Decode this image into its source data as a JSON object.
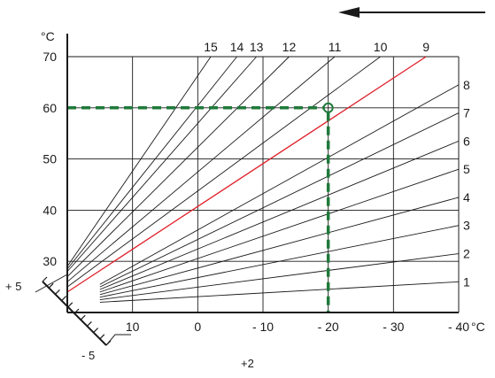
{
  "chart_data": {
    "type": "line",
    "xlabel": "°C",
    "ylabel": "°C",
    "x_ticks": [
      "10",
      "0",
      "- 10",
      "- 20",
      "- 30",
      "- 40"
    ],
    "y_ticks": [
      "30",
      "40",
      "50",
      "60",
      "70"
    ],
    "xlim": [
      20,
      -40
    ],
    "ylim": [
      20,
      70
    ],
    "grid": true,
    "direction_arrow": "right-to-left",
    "offset_scale": {
      "top_label": "+ 5",
      "bottom_label": "- 5",
      "center_label": "+2"
    },
    "highlighted_curve": "9",
    "highlight_color": "#e0202a",
    "guide_color": "#1f7a3a",
    "marked_point": {
      "x": -20,
      "y": 60
    },
    "series": [
      {
        "name": "1",
        "start": [
          15,
          22.0
        ],
        "end": [
          -40,
          26.0
        ]
      },
      {
        "name": "2",
        "start": [
          15,
          22.5
        ],
        "end": [
          -40,
          31.5
        ]
      },
      {
        "name": "3",
        "start": [
          15,
          23.0
        ],
        "end": [
          -40,
          37.0
        ]
      },
      {
        "name": "4",
        "start": [
          15,
          23.5
        ],
        "end": [
          -40,
          42.5
        ]
      },
      {
        "name": "5",
        "start": [
          15,
          24.0
        ],
        "end": [
          -40,
          48.0
        ]
      },
      {
        "name": "6",
        "start": [
          15,
          24.5
        ],
        "end": [
          -40,
          53.5
        ]
      },
      {
        "name": "7",
        "start": [
          15,
          25.0
        ],
        "end": [
          -40,
          59.0
        ]
      },
      {
        "name": "8",
        "start": [
          15,
          25.5
        ],
        "end": [
          -40,
          64.5
        ]
      },
      {
        "name": "9",
        "start": [
          20,
          24.0
        ],
        "end": [
          -35,
          70.0
        ]
      },
      {
        "name": "10",
        "start": [
          20,
          25.0
        ],
        "end": [
          -28,
          70.0
        ]
      },
      {
        "name": "11",
        "start": [
          20,
          26.0
        ],
        "end": [
          -21,
          70.0
        ]
      },
      {
        "name": "12",
        "start": [
          20,
          27.0
        ],
        "end": [
          -14,
          70.0
        ]
      },
      {
        "name": "13",
        "start": [
          20,
          28.0
        ],
        "end": [
          -9,
          70.0
        ]
      },
      {
        "name": "14",
        "start": [
          20,
          28.5
        ],
        "end": [
          -6,
          70.0
        ]
      },
      {
        "name": "15",
        "start": [
          20,
          29.0
        ],
        "end": [
          -2,
          70.0
        ]
      }
    ]
  }
}
